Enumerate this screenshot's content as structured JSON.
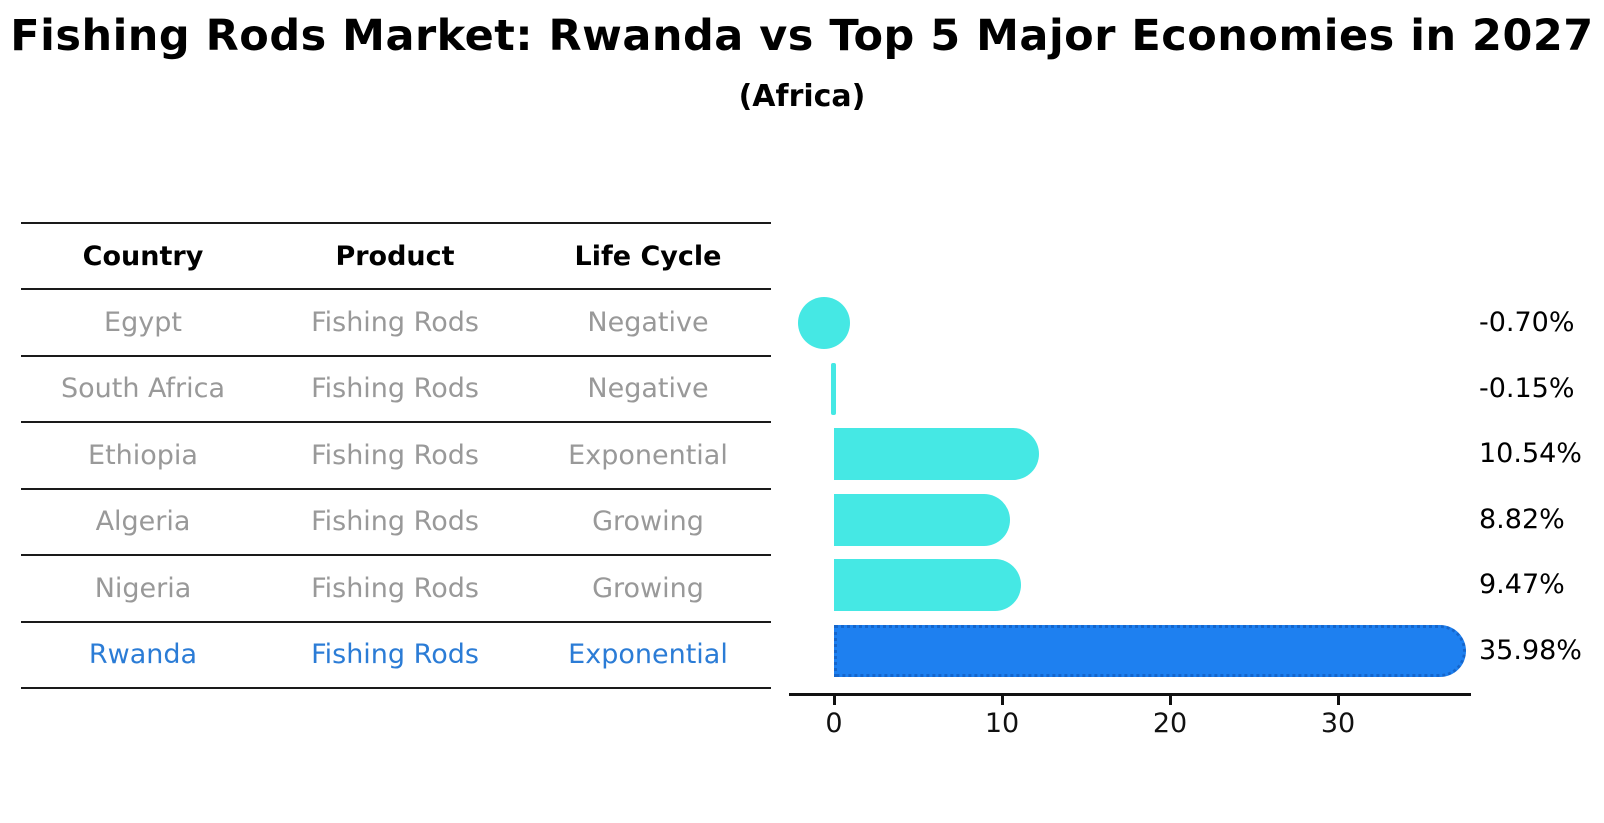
{
  "title": "Fishing Rods Market: Rwanda vs Top 5 Major Economies in 2027",
  "subtitle": "(Africa)",
  "table": {
    "headers": [
      "Country",
      "Product",
      "Life Cycle"
    ],
    "rows": [
      {
        "country": "Egypt",
        "product": "Fishing Rods",
        "life_cycle": "Negative"
      },
      {
        "country": "South Africa",
        "product": "Fishing Rods",
        "life_cycle": "Negative"
      },
      {
        "country": "Ethiopia",
        "product": "Fishing Rods",
        "life_cycle": "Exponential"
      },
      {
        "country": "Algeria",
        "product": "Fishing Rods",
        "life_cycle": "Growing"
      },
      {
        "country": "Nigeria",
        "product": "Fishing Rods",
        "life_cycle": "Growing"
      },
      {
        "country": "Rwanda",
        "product": "Fishing Rods",
        "life_cycle": "Exponential"
      }
    ],
    "highlight_row": "Rwanda"
  },
  "chart_data": {
    "type": "bar",
    "orientation": "horizontal",
    "title": "Fishing Rods Market: Rwanda vs Top 5 Major Economies in 2027",
    "subtitle": "(Africa)",
    "categories": [
      "Egypt",
      "South Africa",
      "Ethiopia",
      "Algeria",
      "Nigeria",
      "Rwanda"
    ],
    "values": [
      -0.7,
      -0.15,
      10.54,
      8.82,
      9.47,
      35.98
    ],
    "value_labels": [
      "-0.70%",
      "-0.15%",
      "10.54%",
      "8.82%",
      "9.47%",
      "35.98%"
    ],
    "highlight_index": 5,
    "x_tick_labels": [
      "0",
      "10",
      "20",
      "30"
    ],
    "x_tick_values": [
      0,
      10,
      20,
      30
    ],
    "xlim": [
      -2.7,
      37.9
    ],
    "grid": false,
    "legend": false
  },
  "colors": {
    "bar": "#45e8e4",
    "highlight_bar": "#1e80f0",
    "highlight_edge": "#1566cc",
    "highlight_text": "#2b7cd6",
    "cell_text": "#999999",
    "header_text": "#000000",
    "axis": "#111111"
  }
}
